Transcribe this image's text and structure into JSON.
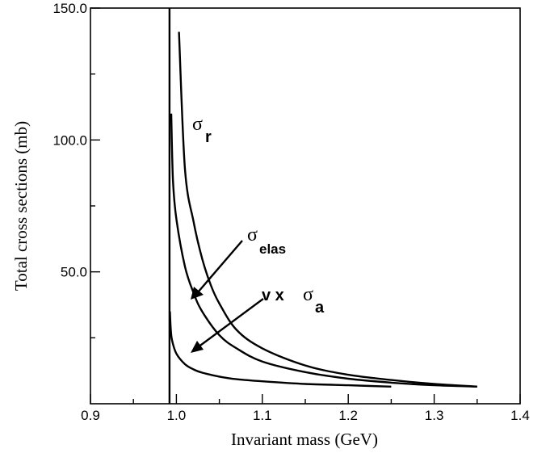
{
  "chart_data": {
    "type": "line",
    "xlabel": "Invariant mass  (GeV)",
    "ylabel": "Total cross sections (mb)",
    "xlim": [
      0.9,
      1.4
    ],
    "ylim": [
      0,
      150
    ],
    "x_ticks": [
      0.9,
      1.0,
      1.1,
      1.2,
      1.3,
      1.4
    ],
    "x_tick_labels": [
      "0.9",
      "1.0",
      "1.1",
      "1.2",
      "1.3",
      "1.4"
    ],
    "y_ticks": [
      50,
      100,
      150
    ],
    "y_tick_labels": [
      "50.0",
      "100.0",
      "150.0"
    ],
    "threshold_x": 0.992,
    "grid": false,
    "series": [
      {
        "name": "σ_r",
        "x": [
          1.003,
          1.01,
          1.02,
          1.03,
          1.04,
          1.05,
          1.07,
          1.1,
          1.15,
          1.2,
          1.25,
          1.3,
          1.35
        ],
        "y": [
          141,
          89,
          69,
          55,
          45,
          38,
          28,
          21,
          14.5,
          11,
          9,
          7.5,
          6.5
        ]
      },
      {
        "name": "σ_elas",
        "x": [
          0.994,
          0.996,
          1.0,
          1.01,
          1.02,
          1.03,
          1.05,
          1.07,
          1.1,
          1.15,
          1.2,
          1.25,
          1.3,
          1.35
        ],
        "y": [
          110,
          85,
          70,
          52,
          42,
          35,
          26,
          21,
          16,
          12,
          9.5,
          8,
          7,
          6.5
        ]
      },
      {
        "name": "v x σ_a",
        "x": [
          0.9925,
          0.9935,
          0.995,
          1.0,
          1.01,
          1.02,
          1.03,
          1.05,
          1.07,
          1.1,
          1.15,
          1.2,
          1.25
        ],
        "y": [
          35,
          28,
          24,
          19,
          15,
          13,
          11.8,
          10.3,
          9.3,
          8.5,
          7.5,
          7,
          6.5
        ]
      }
    ],
    "annotations": [
      {
        "symbol": "σ",
        "subscript": "r"
      },
      {
        "symbol": "σ",
        "subscript": "elas"
      },
      {
        "prefix": "v x ",
        "symbol": "σ",
        "subscript": "a"
      }
    ]
  }
}
